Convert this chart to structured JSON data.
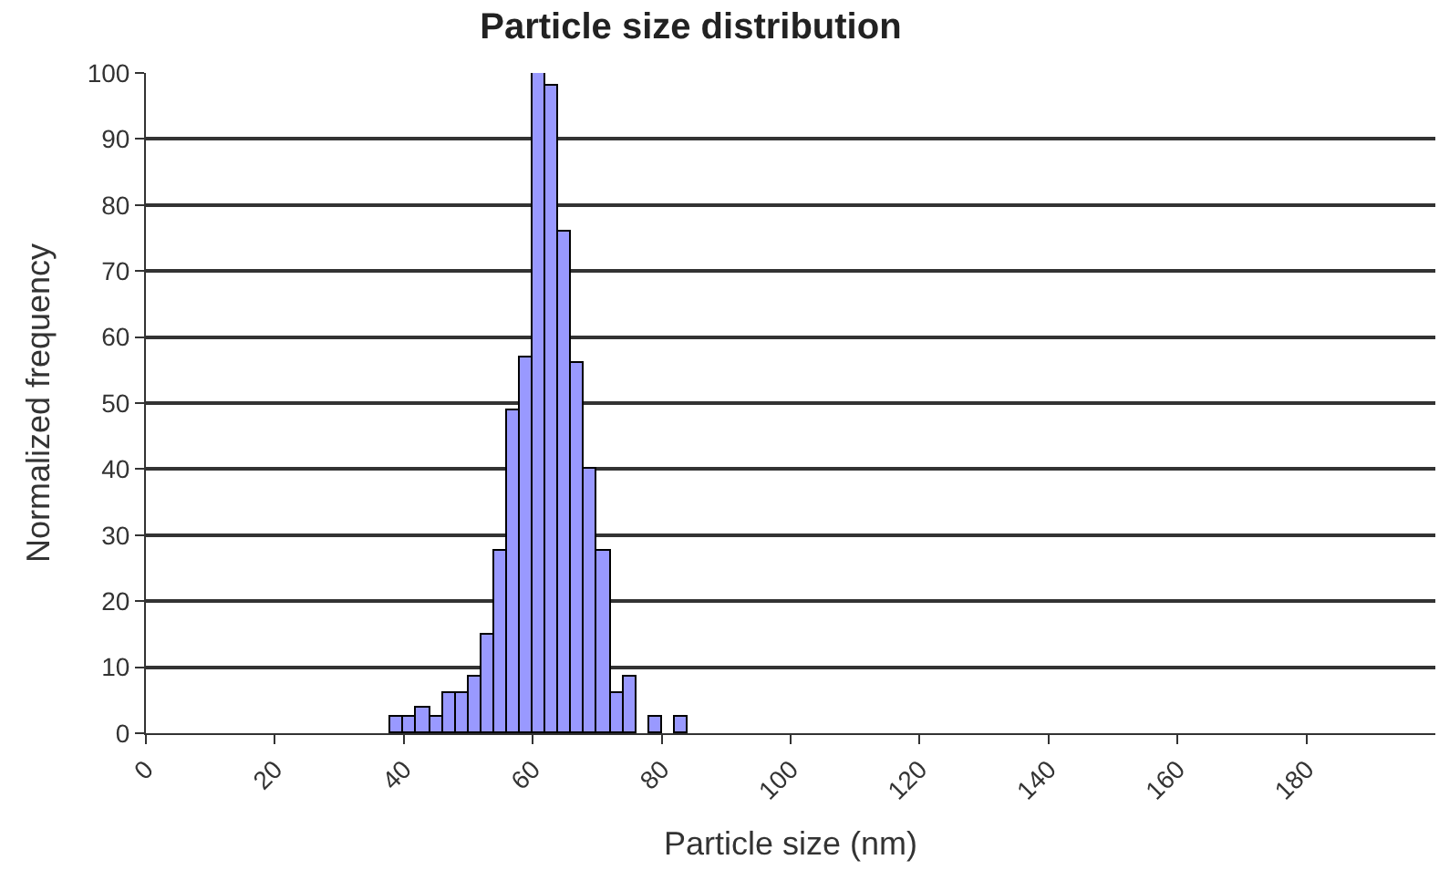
{
  "chart_data": {
    "type": "histogram",
    "title": "Particle size distribution",
    "xlabel": "Particle size (nm)",
    "ylabel": "Normalized frequency",
    "bins": [
      38,
      40,
      42,
      44,
      46,
      48,
      50,
      52,
      54,
      56,
      58,
      60,
      62,
      64,
      66,
      68,
      70,
      72,
      74,
      76,
      78,
      80,
      82,
      84
    ],
    "values": [
      2.5,
      2.5,
      4,
      2.5,
      6,
      6,
      8.5,
      15,
      27.5,
      49,
      57,
      100,
      98,
      76,
      56,
      40,
      27.5,
      6,
      8.5,
      0,
      2.5,
      0,
      2.5
    ],
    "color": "#9999ff",
    "xlim": [
      0,
      200
    ],
    "xticks": [
      0,
      20,
      40,
      60,
      80,
      100,
      120,
      140,
      160,
      180
    ],
    "ylim": [
      0,
      100
    ],
    "yticks": [
      0,
      10,
      20,
      30,
      40,
      50,
      60,
      70,
      80,
      90,
      100
    ],
    "grid": "y"
  }
}
